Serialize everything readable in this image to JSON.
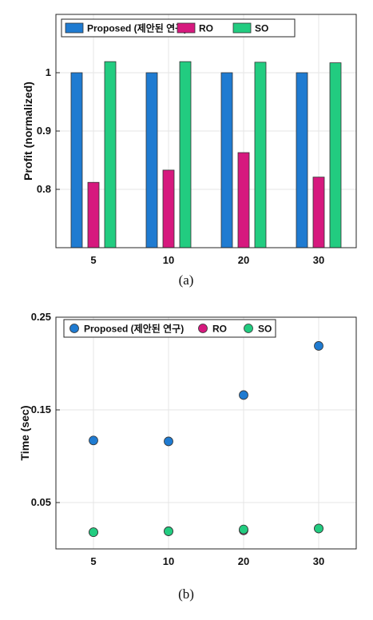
{
  "colors": {
    "proposed": "#1f7bd1",
    "ro": "#d6197e",
    "so": "#22cc80"
  },
  "chart_data": [
    {
      "type": "bar",
      "caption": "(a)",
      "ylabel": "Profit (normalized)",
      "xlabel": "",
      "categories": [
        "5",
        "10",
        "20",
        "30"
      ],
      "ylim": [
        0.7,
        1.1
      ],
      "yticks": [
        "0.8",
        "0.9",
        "1"
      ],
      "grid": true,
      "legend": "top-left",
      "series": [
        {
          "name": "Proposed (제안된 연구)",
          "values": [
            1.0,
            1.0,
            1.0,
            1.0
          ]
        },
        {
          "name": "RO",
          "values": [
            0.812,
            0.833,
            0.863,
            0.821
          ]
        },
        {
          "name": "SO",
          "values": [
            1.019,
            1.019,
            1.018,
            1.017
          ]
        }
      ]
    },
    {
      "type": "scatter",
      "caption": "(b)",
      "ylabel": "Time (sec)",
      "xlabel": "",
      "categories": [
        "5",
        "10",
        "20",
        "30"
      ],
      "ylim": [
        0.0,
        0.25
      ],
      "yticks": [
        "0.05",
        "0.15",
        "0.25"
      ],
      "grid": true,
      "legend": "top-left",
      "series": [
        {
          "name": "Proposed (제안된 연구)",
          "values": [
            0.117,
            0.116,
            0.166,
            0.219
          ]
        },
        {
          "name": "RO",
          "values": [
            0.018,
            0.019,
            0.02,
            0.022
          ]
        },
        {
          "name": "SO",
          "values": [
            0.018,
            0.019,
            0.021,
            0.022
          ]
        }
      ]
    }
  ]
}
